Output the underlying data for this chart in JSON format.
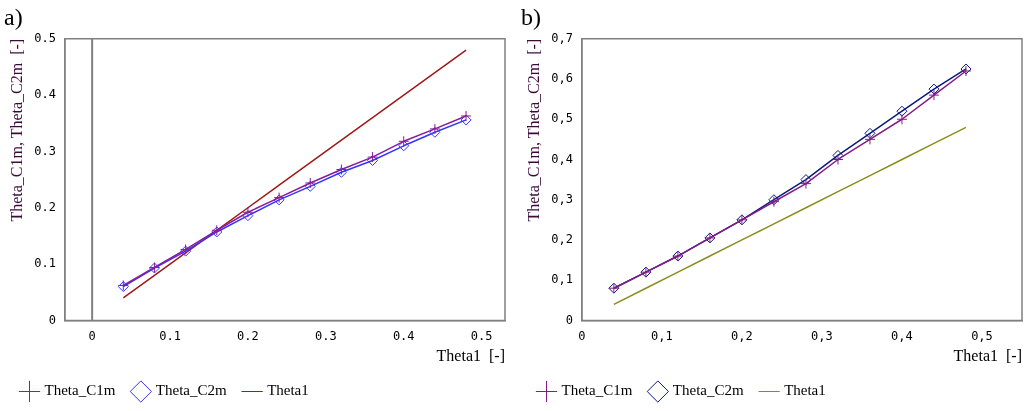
{
  "chart_data": [
    {
      "type": "line",
      "title": "a)",
      "xlabel": "Theta1  [-]",
      "ylabel": "Theta_C1m, Theta_C2m  [-]",
      "x": [
        0.04,
        0.08,
        0.12,
        0.16,
        0.2,
        0.24,
        0.28,
        0.32,
        0.36,
        0.4,
        0.44,
        0.48
      ],
      "xlim": [
        -0.035,
        0.53
      ],
      "xticks": [
        0,
        0.1,
        0.2,
        0.3,
        0.4,
        0.5
      ],
      "ylim": [
        0,
        0.5
      ],
      "yticks": [
        0,
        0.1,
        0.2,
        0.3,
        0.4,
        0.5
      ],
      "grid": false,
      "legend": "bottom",
      "ref_lines": [
        {
          "axis": "x",
          "value": 0,
          "color": "#808080"
        }
      ],
      "series": [
        {
          "name": "Theta_C1m",
          "color": "#8b1a9e",
          "marker": "cross",
          "values": [
            0.062,
            0.094,
            0.126,
            0.16,
            0.192,
            0.218,
            0.244,
            0.268,
            0.29,
            0.318,
            0.34,
            0.363
          ]
        },
        {
          "name": "Theta_C2m",
          "color": "#3535ff",
          "marker": "diamond",
          "values": [
            0.06,
            0.093,
            0.123,
            0.157,
            0.186,
            0.214,
            0.238,
            0.263,
            0.284,
            0.31,
            0.334,
            0.356
          ]
        },
        {
          "name": "Theta1",
          "color": "#a01818",
          "marker": "none",
          "values": [
            0.04,
            0.08,
            0.12,
            0.16,
            0.2,
            0.24,
            0.28,
            0.32,
            0.36,
            0.4,
            0.44,
            0.48
          ]
        }
      ]
    },
    {
      "type": "line",
      "title": "b)",
      "xlabel": "Theta1  [-]",
      "ylabel": "Theta_C1m, Theta_C2m  [-]",
      "x": [
        0.04,
        0.08,
        0.12,
        0.16,
        0.2,
        0.24,
        0.28,
        0.32,
        0.36,
        0.4,
        0.44,
        0.48
      ],
      "xlim": [
        0,
        0.55
      ],
      "xticks": [
        0,
        {
          "value": 0.1,
          "label": "0,1"
        },
        {
          "value": 0.2,
          "label": "0,2"
        },
        {
          "value": 0.3,
          "label": "0,3"
        },
        {
          "value": 0.4,
          "label": "0,4"
        },
        {
          "value": 0.5,
          "label": "0,5"
        }
      ],
      "ylim": [
        0,
        0.7
      ],
      "yticks": [
        0,
        {
          "value": 0.1,
          "label": "0,1"
        },
        {
          "value": 0.2,
          "label": "0,2"
        },
        {
          "value": 0.3,
          "label": "0,3"
        },
        {
          "value": 0.4,
          "label": "0,4"
        },
        {
          "value": 0.5,
          "label": "0,5"
        },
        {
          "value": 0.6,
          "label": "0,6"
        },
        {
          "value": 0.7,
          "label": "0,7"
        }
      ],
      "grid": false,
      "legend": "bottom",
      "series": [
        {
          "name": "Theta_C1m",
          "color": "#861b86",
          "marker": "cross",
          "values": [
            0.08,
            0.12,
            0.16,
            0.205,
            0.25,
            0.295,
            0.34,
            0.4,
            0.45,
            0.5,
            0.56,
            0.62
          ]
        },
        {
          "name": "Theta_C2m",
          "color": "#0a1a80",
          "marker": "diamond",
          "values": [
            0.08,
            0.12,
            0.16,
            0.205,
            0.25,
            0.3,
            0.35,
            0.41,
            0.465,
            0.52,
            0.575,
            0.625
          ]
        },
        {
          "name": "Theta1",
          "color": "#8c8c1e",
          "marker": "none",
          "values": [
            0.04,
            0.08,
            0.12,
            0.16,
            0.2,
            0.24,
            0.28,
            0.32,
            0.36,
            0.4,
            0.44,
            0.48
          ]
        }
      ]
    }
  ]
}
